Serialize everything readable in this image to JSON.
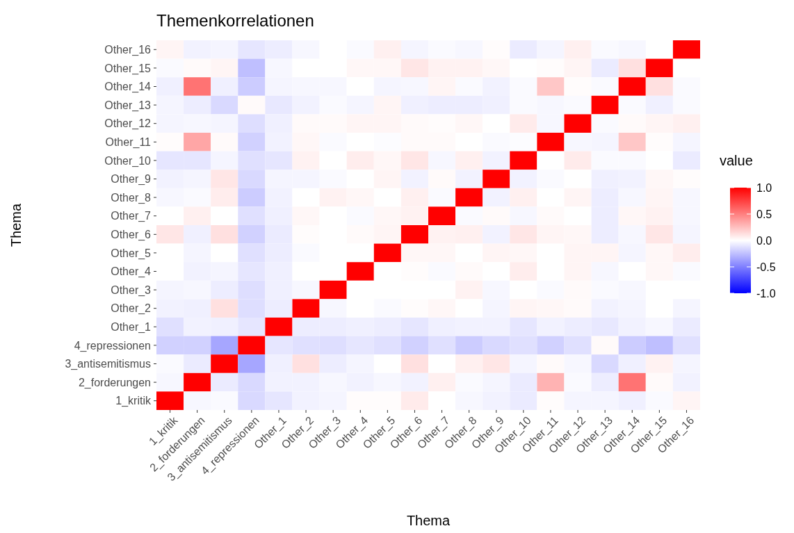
{
  "chart_data": {
    "type": "heatmap",
    "title": "Themenkorrelationen",
    "xlabel": "Thema",
    "ylabel": "Thema",
    "legend_title": "value",
    "categories": [
      "1_kritik",
      "2_forderungen",
      "3_antisemitismus",
      "4_repressionen",
      "Other_1",
      "Other_2",
      "Other_3",
      "Other_4",
      "Other_5",
      "Other_6",
      "Other_7",
      "Other_8",
      "Other_9",
      "Other_10",
      "Other_11",
      "Other_12",
      "Other_13",
      "Other_14",
      "Other_15",
      "Other_16"
    ],
    "y_categories": [
      "Other_16",
      "Other_15",
      "Other_14",
      "Other_13",
      "Other_12",
      "Other_11",
      "Other_10",
      "Other_9",
      "Other_8",
      "Other_7",
      "Other_6",
      "Other_5",
      "Other_4",
      "Other_3",
      "Other_2",
      "Other_1",
      "4_repressionen",
      "3_antisemitismus",
      "2_forderungen",
      "1_kritik"
    ],
    "cells": [
      [
        0.04,
        -0.05,
        -0.04,
        -0.1,
        -0.07,
        -0.03,
        0,
        -0.02,
        0.06,
        -0.04,
        -0.02,
        -0.03,
        0.01,
        -0.08,
        -0.04,
        0.06,
        -0.02,
        -0.03,
        0,
        1
      ],
      [
        -0.02,
        0.02,
        0.04,
        -0.25,
        -0.03,
        0,
        0,
        0.03,
        0.03,
        0.1,
        0.05,
        0.05,
        0.03,
        0,
        0.01,
        0.04,
        -0.08,
        0.12,
        1,
        0
      ],
      [
        -0.06,
        0.55,
        -0.06,
        -0.2,
        -0.04,
        -0.03,
        -0.03,
        0,
        -0.04,
        -0.03,
        0.04,
        -0.02,
        -0.05,
        -0.02,
        0.22,
        0.01,
        -0.02,
        1,
        0.12,
        -0.02
      ],
      [
        -0.04,
        -0.07,
        -0.15,
        0.02,
        -0.09,
        -0.05,
        -0.02,
        -0.04,
        0.04,
        -0.06,
        -0.07,
        -0.07,
        -0.06,
        -0.02,
        -0.03,
        -0.02,
        1,
        -0.02,
        -0.06,
        -0.02
      ],
      [
        -0.04,
        -0.03,
        -0.04,
        -0.13,
        -0.06,
        0.02,
        0.02,
        0.04,
        0.04,
        0.02,
        0.01,
        0.03,
        0,
        0.08,
        -0.03,
        1,
        -0.02,
        0.02,
        0.04,
        0.06
      ],
      [
        0.01,
        0.35,
        0.02,
        -0.18,
        -0.05,
        0.03,
        -0.02,
        0,
        -0.01,
        0.02,
        0.02,
        0,
        -0.02,
        -0.01,
        1,
        -0.03,
        -0.04,
        0.22,
        0.01,
        -0.04
      ],
      [
        -0.1,
        -0.1,
        -0.04,
        -0.12,
        -0.1,
        0.05,
        0,
        0.07,
        0.03,
        0.1,
        -0.03,
        0.06,
        -0.05,
        1,
        0,
        0.08,
        -0.02,
        -0.02,
        0,
        -0.08
      ],
      [
        -0.05,
        -0.04,
        0.1,
        -0.15,
        -0.04,
        -0.04,
        -0.02,
        0,
        0.04,
        -0.05,
        0.02,
        -0.05,
        1,
        -0.05,
        -0.02,
        0,
        -0.06,
        -0.05,
        0.03,
        0.01
      ],
      [
        -0.03,
        -0.02,
        0.07,
        -0.2,
        -0.05,
        0,
        0.05,
        0.03,
        0,
        0.06,
        -0.02,
        1,
        -0.05,
        0.06,
        0,
        0.04,
        -0.07,
        -0.03,
        0.04,
        -0.03
      ],
      [
        0,
        0.06,
        0,
        -0.12,
        -0.06,
        0.03,
        0,
        -0.02,
        0.03,
        0.05,
        1,
        -0.02,
        0.02,
        -0.03,
        0.02,
        0,
        -0.07,
        0.03,
        0.05,
        -0.03
      ],
      [
        0.1,
        -0.06,
        0.12,
        -0.18,
        -0.08,
        0.01,
        0,
        0.02,
        0.04,
        1,
        0.05,
        0.06,
        -0.05,
        0.1,
        0.04,
        0.03,
        -0.07,
        -0.03,
        0.1,
        -0.04
      ],
      [
        0,
        -0.04,
        0,
        -0.12,
        -0.07,
        -0.02,
        0,
        0,
        1,
        0.03,
        0.03,
        0,
        0.04,
        0.03,
        0,
        0.04,
        0.04,
        -0.04,
        0.03,
        0.07
      ],
      [
        0,
        -0.05,
        -0.04,
        -0.1,
        -0.06,
        0,
        0,
        1,
        0,
        0.01,
        -0.02,
        0.02,
        0,
        0.07,
        0,
        0.04,
        -0.03,
        0,
        0.03,
        -0.02
      ],
      [
        -0.04,
        -0.03,
        -0.07,
        -0.13,
        -0.06,
        -0.03,
        1,
        0,
        0,
        0,
        0,
        0.05,
        -0.03,
        0,
        -0.02,
        0.02,
        -0.02,
        -0.03,
        0,
        0
      ],
      [
        -0.05,
        -0.06,
        0.12,
        -0.13,
        -0.07,
        1,
        -0.03,
        0,
        -0.02,
        0.01,
        0.03,
        0,
        -0.04,
        0.04,
        0.03,
        0.02,
        -0.05,
        -0.04,
        0,
        -0.04
      ],
      [
        -0.12,
        -0.05,
        -0.06,
        -0.1,
        1,
        -0.07,
        -0.07,
        -0.06,
        -0.07,
        -0.1,
        -0.06,
        -0.05,
        -0.05,
        -0.1,
        -0.05,
        -0.07,
        -0.09,
        -0.05,
        -0.03,
        -0.08
      ],
      [
        -0.18,
        -0.18,
        -0.35,
        1,
        -0.1,
        -0.12,
        -0.13,
        -0.1,
        -0.12,
        -0.18,
        -0.12,
        -0.2,
        -0.15,
        -0.12,
        -0.18,
        -0.12,
        0.02,
        -0.2,
        -0.25,
        -0.12
      ],
      [
        -0.02,
        -0.08,
        1,
        -0.35,
        -0.06,
        0.12,
        -0.07,
        -0.04,
        0,
        0.12,
        0,
        0.06,
        0.1,
        -0.04,
        0.02,
        -0.03,
        -0.15,
        -0.06,
        0.05,
        -0.04
      ],
      [
        -0.03,
        1,
        -0.08,
        -0.15,
        -0.05,
        -0.05,
        -0.03,
        -0.05,
        -0.03,
        -0.05,
        0.06,
        -0.02,
        -0.04,
        -0.08,
        0.3,
        -0.02,
        -0.07,
        0.55,
        0.02,
        -0.05
      ],
      [
        1,
        -0.03,
        -0.02,
        -0.15,
        -0.1,
        -0.05,
        -0.04,
        0.01,
        0.01,
        0.08,
        0,
        -0.03,
        -0.05,
        -0.08,
        0.01,
        -0.04,
        -0.04,
        -0.06,
        -0.02,
        0.04
      ]
    ],
    "clim": [
      -1,
      1
    ],
    "cticks": [
      {
        "value": -1,
        "label": "-1.0"
      },
      {
        "value": -0.5,
        "label": "-0.5"
      },
      {
        "value": 0,
        "label": "0.0"
      },
      {
        "value": 0.5,
        "label": "0.5"
      },
      {
        "value": 1,
        "label": "1.0"
      }
    ]
  }
}
